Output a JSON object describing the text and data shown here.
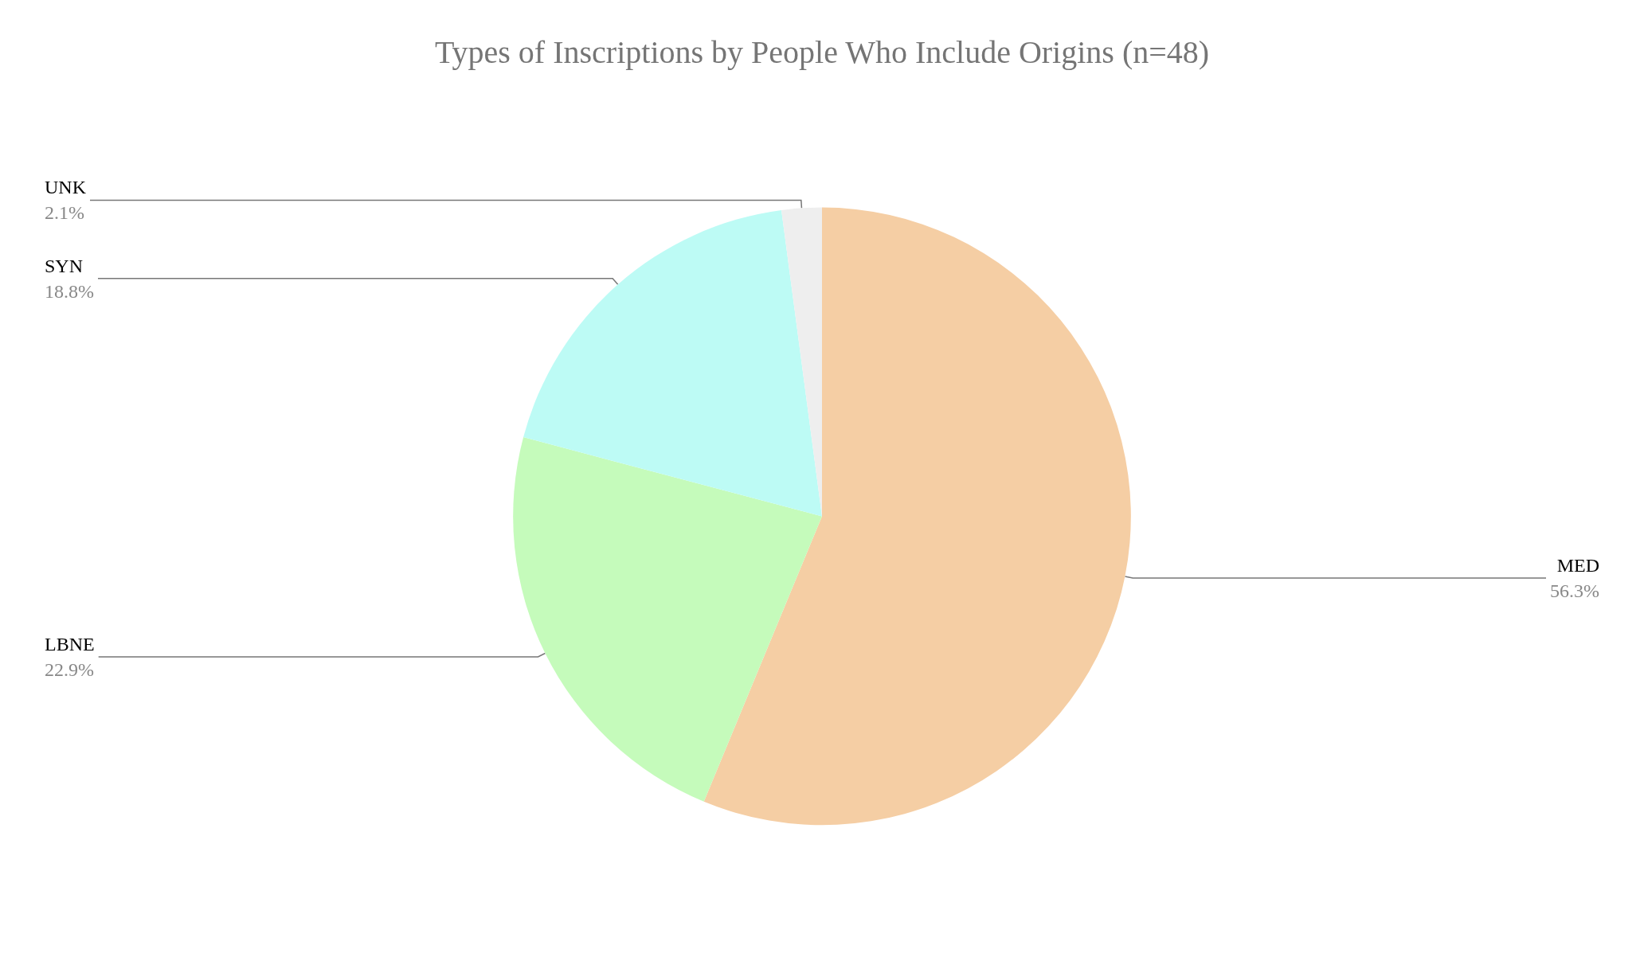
{
  "chart_data": {
    "type": "pie",
    "title": "Types of Inscriptions by People Who Include Origins (n=48)",
    "categories": [
      "MED",
      "LBNE",
      "SYN",
      "UNK"
    ],
    "values": [
      56.3,
      22.9,
      18.8,
      2.1
    ],
    "value_labels": [
      "56.3%",
      "22.9%",
      "18.8%",
      "2.1%"
    ],
    "colors": [
      "#f5cea4",
      "#c5fbbb",
      "#bdfbf5",
      "#eeeeee"
    ]
  }
}
